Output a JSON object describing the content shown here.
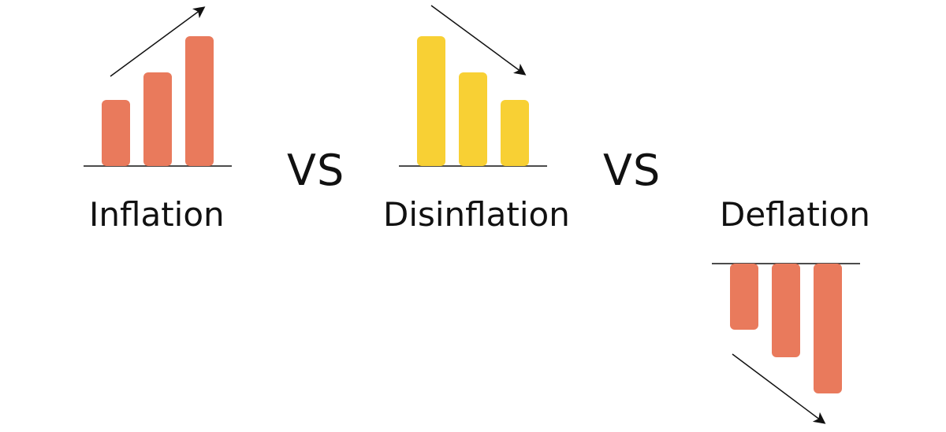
{
  "labels": {
    "inflation": "Inflation",
    "disinflation": "Disinflation",
    "deflation": "Deflation"
  },
  "separators": [
    "VS",
    "VS"
  ],
  "colors": {
    "inflation_bars": "#E97A5C",
    "disinflation_bars": "#F8D034",
    "deflation_bars": "#E97A5C",
    "lines": "#111111"
  },
  "panels": [
    {
      "name": "inflation",
      "bar_levels": [
        0.49,
        0.71,
        1.0
      ],
      "direction": "up-rising"
    },
    {
      "name": "disinflation",
      "bar_levels": [
        1.0,
        0.71,
        0.49
      ],
      "direction": "up-falling"
    },
    {
      "name": "deflation",
      "bar_levels": [
        0.49,
        0.71,
        1.0
      ],
      "direction": "down-growing"
    }
  ]
}
